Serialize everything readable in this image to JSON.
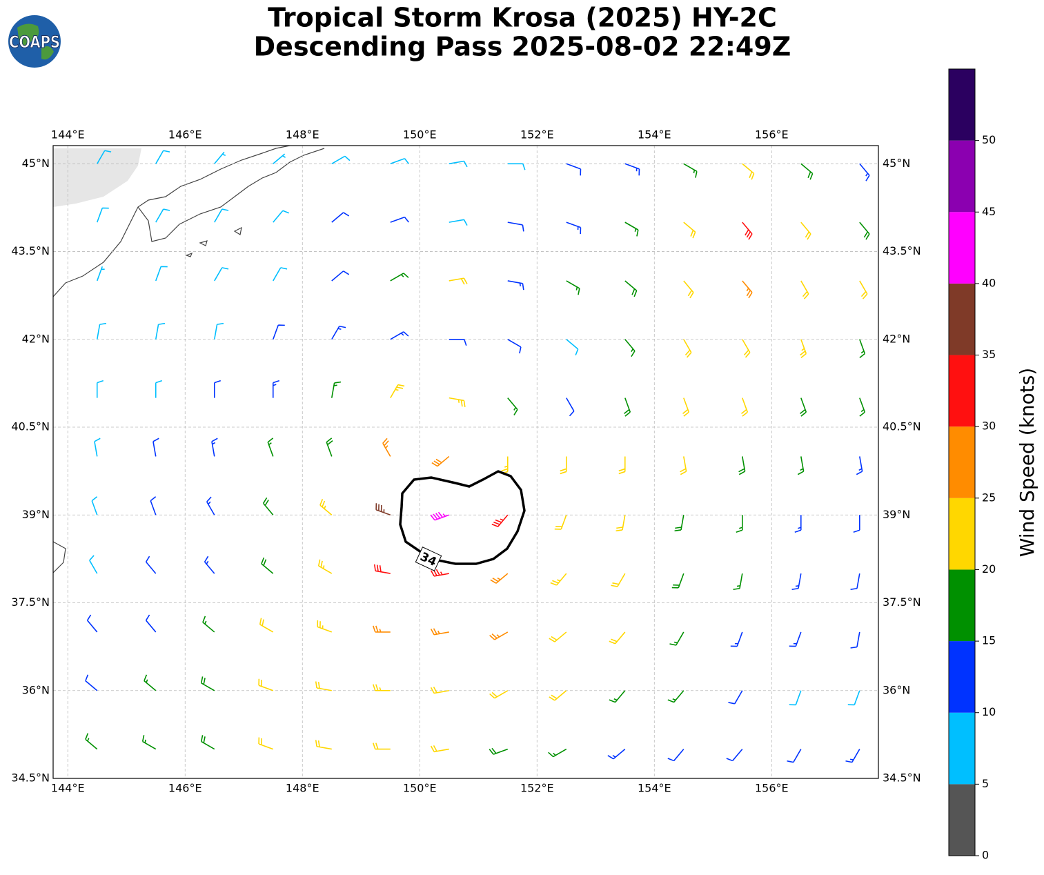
{
  "chart_data": {
    "type": "wind-barbs",
    "title": "Tropical Storm Krosa (2025) HY-2C",
    "subtitle": "Descending Pass 2025-08-02 22:49Z",
    "logo": "COAPS",
    "xlim": [
      143.75,
      157.82
    ],
    "ylim": [
      34.5,
      45.31
    ],
    "xticks": [
      {
        "value": 144,
        "label": "144°E"
      },
      {
        "value": 146,
        "label": "146°E"
      },
      {
        "value": 148,
        "label": "148°E"
      },
      {
        "value": 150,
        "label": "150°E"
      },
      {
        "value": 152,
        "label": "152°E"
      },
      {
        "value": 154,
        "label": "154°E"
      },
      {
        "value": 156,
        "label": "156°E"
      }
    ],
    "yticks": [
      {
        "value": 45,
        "label": "45°N"
      },
      {
        "value": 43.5,
        "label": "43.5°N"
      },
      {
        "value": 42,
        "label": "42°N"
      },
      {
        "value": 40.5,
        "label": "40.5°N"
      },
      {
        "value": 39,
        "label": "39°N"
      },
      {
        "value": 37.5,
        "label": "37.5°N"
      },
      {
        "value": 36,
        "label": "36°N"
      },
      {
        "value": 34.5,
        "label": "34.5°N"
      }
    ],
    "grid": true,
    "colorbar": {
      "label": "Wind Speed (knots)",
      "bounds": [
        0,
        5,
        10,
        15,
        20,
        25,
        30,
        35,
        40,
        45,
        50,
        55
      ],
      "colors": [
        "#555555",
        "#00bfff",
        "#0033ff",
        "#009000",
        "#ffd700",
        "#ff8c00",
        "#ff1010",
        "#7f3a28",
        "#ff00ff",
        "#8b00b0",
        "#2b0060"
      ],
      "ticks": [
        0,
        5,
        10,
        15,
        20,
        25,
        30,
        35,
        40,
        45,
        50
      ]
    },
    "contour": {
      "level": 34
    },
    "wind": {
      "lon": [
        144.5,
        145.5,
        146.5,
        147.5,
        148.5,
        149.5,
        150.5,
        151.5,
        152.5,
        153.5,
        154.5,
        155.5,
        156.5,
        157.5
      ],
      "lat": [
        45,
        44,
        43,
        42,
        41,
        40,
        39,
        38,
        37,
        36,
        35
      ],
      "speed": [
        [
          8,
          8,
          7,
          7,
          8,
          8,
          8,
          9,
          10,
          13,
          17,
          22,
          18,
          14
        ],
        [
          8,
          8,
          8,
          9,
          12,
          12,
          9,
          12,
          13,
          16,
          22,
          30,
          22,
          18
        ],
        [
          7,
          8,
          8,
          9,
          12,
          17,
          21,
          14,
          16,
          18,
          22,
          26,
          22,
          20
        ],
        [
          8,
          8,
          8,
          11,
          13,
          14,
          12,
          12,
          9,
          16,
          22,
          22,
          24,
          17
        ],
        [
          8,
          9,
          12,
          14,
          17,
          23,
          24,
          16,
          10,
          18,
          22,
          20,
          19,
          16
        ],
        [
          8,
          11,
          13,
          16,
          19,
          27,
          28,
          23,
          20,
          22,
          20,
          18,
          17,
          14
        ],
        [
          9,
          12,
          14,
          18,
          24,
          36,
          43,
          33,
          22,
          20,
          18,
          16,
          14,
          12
        ],
        [
          9,
          11,
          14,
          19,
          24,
          31,
          33,
          27,
          23,
          21,
          18,
          15,
          13,
          12
        ],
        [
          10,
          12,
          16,
          21,
          23,
          25,
          27,
          27,
          22,
          20,
          17,
          14,
          13,
          11
        ],
        [
          12,
          16,
          18,
          21,
          22,
          23,
          22,
          22,
          20,
          17,
          15,
          12,
          9,
          8
        ],
        [
          16,
          17,
          18,
          21,
          22,
          22,
          20,
          18,
          17,
          14,
          12,
          12,
          11,
          14
        ]
      ],
      "direction": [
        [
          30,
          30,
          40,
          50,
          60,
          70,
          80,
          90,
          110,
          110,
          120,
          130,
          130,
          140
        ],
        [
          20,
          30,
          30,
          40,
          50,
          70,
          80,
          100,
          110,
          120,
          130,
          140,
          140,
          140
        ],
        [
          20,
          20,
          30,
          30,
          50,
          60,
          80,
          100,
          120,
          130,
          140,
          140,
          150,
          150
        ],
        [
          10,
          10,
          10,
          20,
          30,
          60,
          90,
          120,
          130,
          140,
          150,
          150,
          160,
          160
        ],
        [
          0,
          0,
          0,
          0,
          10,
          30,
          100,
          140,
          150,
          160,
          160,
          160,
          160,
          160
        ],
        [
          350,
          350,
          350,
          340,
          340,
          330,
          230,
          180,
          180,
          180,
          170,
          170,
          170,
          170
        ],
        [
          340,
          340,
          330,
          320,
          310,
          290,
          250,
          220,
          200,
          190,
          190,
          180,
          180,
          180
        ],
        [
          330,
          320,
          320,
          310,
          300,
          280,
          260,
          230,
          220,
          210,
          200,
          190,
          190,
          190
        ],
        [
          320,
          320,
          310,
          300,
          290,
          270,
          260,
          240,
          230,
          220,
          210,
          200,
          200,
          190
        ],
        [
          310,
          310,
          300,
          290,
          280,
          270,
          260,
          240,
          230,
          220,
          220,
          210,
          200,
          200
        ],
        [
          310,
          300,
          300,
          290,
          280,
          270,
          260,
          250,
          240,
          230,
          220,
          220,
          210,
          210
        ]
      ]
    }
  }
}
